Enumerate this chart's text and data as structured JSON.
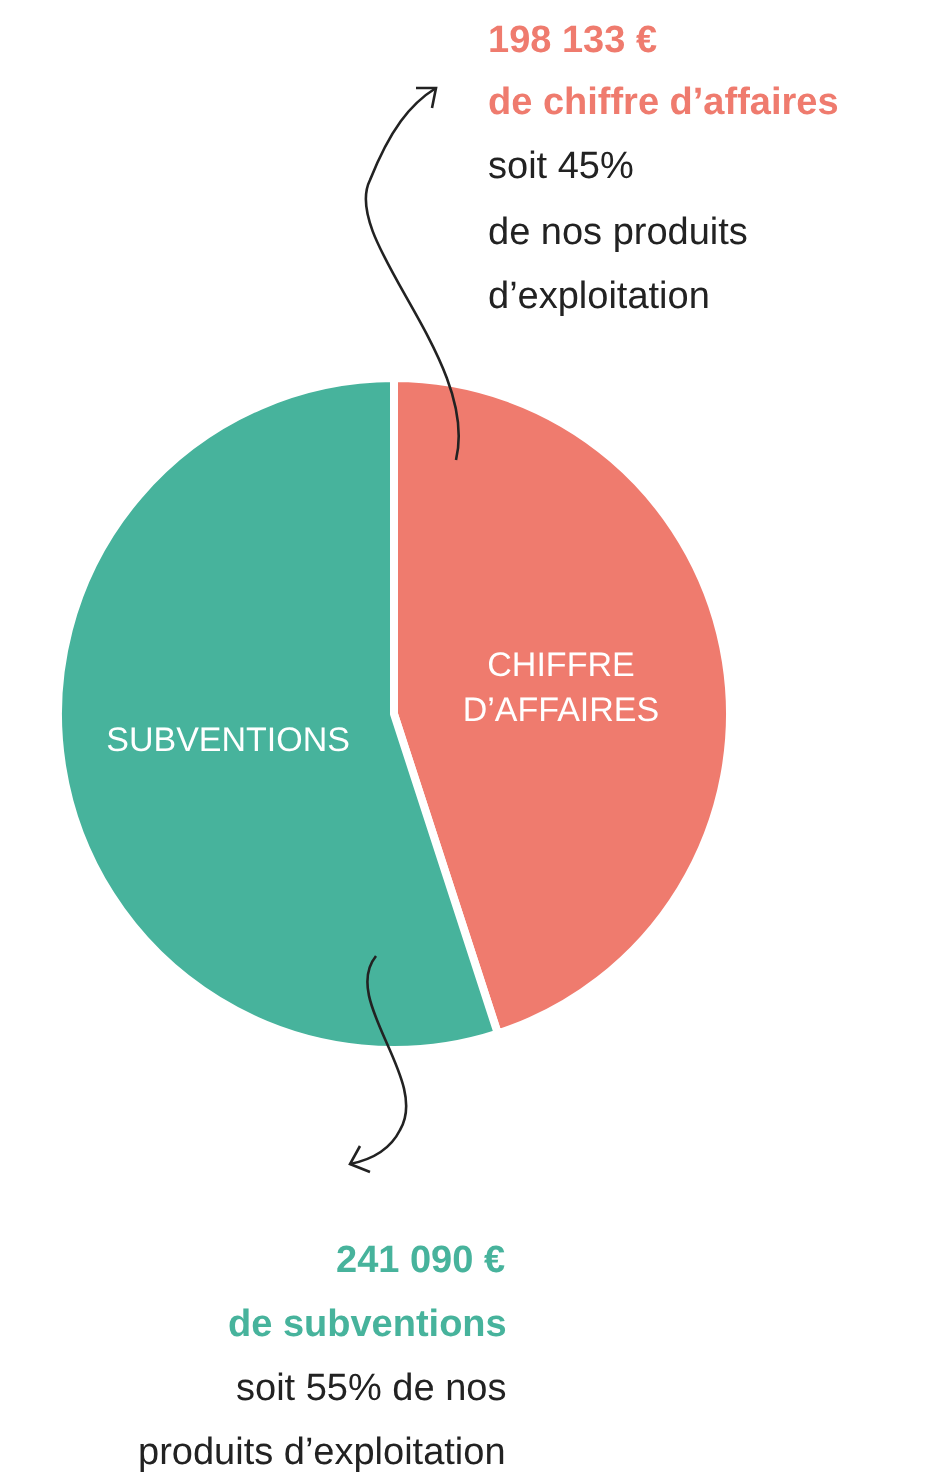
{
  "chart_data": {
    "type": "pie",
    "categories": [
      "CHIFFRE D’AFFAIRES",
      "SUBVENTIONS"
    ],
    "values": [
      45,
      55
    ],
    "colors": [
      "#ef7b6e",
      "#47b39c"
    ],
    "legend": false,
    "annotations": [
      "198 133 €\nde chiffre d’affaires",
      "soit 45%\nde nos produits\nd’exploitation",
      "241 090 €\nde subventions",
      "soit 55% de nos\nproduits d’exploitation"
    ]
  }
}
